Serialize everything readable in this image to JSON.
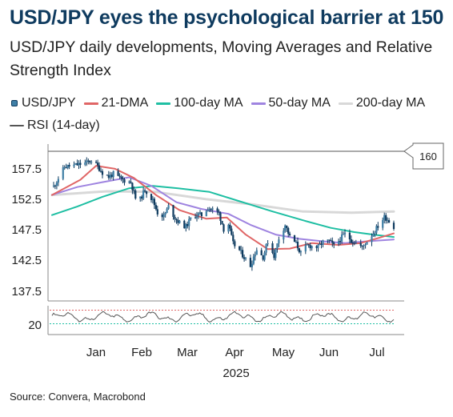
{
  "title": "USD/JPY eyes the psychological barrier at 150",
  "subtitle": "USD/JPY daily developments, Moving Averages and Relative Strength Index",
  "source": "Source: Convera, Macrobond",
  "legend": [
    {
      "label": "USD/JPY",
      "color": "#0f3b5f",
      "icon": "candlestick-icon"
    },
    {
      "label": "21-DMA",
      "color": "#e06666"
    },
    {
      "label": "100-day MA",
      "color": "#1fbfa3"
    },
    {
      "label": "50-day MA",
      "color": "#9f84e0"
    },
    {
      "label": "200-day MA",
      "color": "#d8d8d8"
    },
    {
      "label": "RSI (14-day)",
      "color": "#555555"
    }
  ],
  "chart_data": {
    "type": "line",
    "x_axis": {
      "months": [
        "Jan",
        "Feb",
        "Mar",
        "Apr",
        "May",
        "Jun",
        "Jul"
      ],
      "year_label": "2025",
      "range": [
        "2024-12-16",
        "2025-07-21"
      ]
    },
    "y_axis": {
      "ticks": [
        "157.5",
        "152.5",
        "147.5",
        "142.5",
        "137.5"
      ],
      "range": [
        135.5,
        160.2
      ],
      "grid": false
    },
    "reference_line": {
      "value": 160,
      "label": "160"
    },
    "price_keypoints": [
      [
        "2024-12-17",
        153.9
      ],
      [
        "2024-12-24",
        157.1
      ],
      [
        "2024-12-31",
        157.4
      ],
      [
        "2025-01-07",
        157.8
      ],
      [
        "2025-01-10",
        158.2
      ],
      [
        "2025-01-14",
        157.2
      ],
      [
        "2025-01-17",
        156.2
      ],
      [
        "2025-01-21",
        155.5
      ],
      [
        "2025-01-24",
        156.0
      ],
      [
        "2025-01-28",
        155.2
      ],
      [
        "2025-01-31",
        154.9
      ],
      [
        "2025-02-04",
        154.6
      ],
      [
        "2025-02-07",
        152.0
      ],
      [
        "2025-02-10",
        151.8
      ],
      [
        "2025-02-13",
        153.4
      ],
      [
        "2025-02-18",
        151.6
      ],
      [
        "2025-02-21",
        149.6
      ],
      [
        "2025-02-25",
        149.0
      ],
      [
        "2025-02-28",
        150.6
      ],
      [
        "2025-03-04",
        148.8
      ],
      [
        "2025-03-07",
        147.9
      ],
      [
        "2025-03-11",
        147.3
      ],
      [
        "2025-03-14",
        148.6
      ],
      [
        "2025-03-18",
        149.3
      ],
      [
        "2025-03-21",
        149.2
      ],
      [
        "2025-03-25",
        150.4
      ],
      [
        "2025-03-28",
        150.1
      ],
      [
        "2025-04-01",
        149.5
      ],
      [
        "2025-04-04",
        146.9
      ],
      [
        "2025-04-07",
        147.7
      ],
      [
        "2025-04-10",
        144.5
      ],
      [
        "2025-04-14",
        143.4
      ],
      [
        "2025-04-17",
        142.3
      ],
      [
        "2025-04-21",
        140.9
      ],
      [
        "2025-04-23",
        142.4
      ],
      [
        "2025-04-25",
        143.6
      ],
      [
        "2025-04-29",
        142.3
      ],
      [
        "2025-05-02",
        144.9
      ],
      [
        "2025-05-06",
        142.5
      ],
      [
        "2025-05-09",
        145.4
      ],
      [
        "2025-05-13",
        147.6
      ],
      [
        "2025-05-16",
        145.6
      ],
      [
        "2025-05-20",
        144.5
      ],
      [
        "2025-05-23",
        142.9
      ],
      [
        "2025-05-27",
        144.2
      ],
      [
        "2025-05-30",
        144.1
      ],
      [
        "2025-06-03",
        143.9
      ],
      [
        "2025-06-06",
        144.8
      ],
      [
        "2025-06-10",
        144.9
      ],
      [
        "2025-06-13",
        144.1
      ],
      [
        "2025-06-17",
        145.3
      ],
      [
        "2025-06-20",
        146.1
      ],
      [
        "2025-06-24",
        145.1
      ],
      [
        "2025-06-27",
        144.6
      ],
      [
        "2025-07-01",
        143.9
      ],
      [
        "2025-07-03",
        144.6
      ],
      [
        "2025-07-08",
        146.3
      ],
      [
        "2025-07-11",
        147.4
      ],
      [
        "2025-07-15",
        148.9
      ],
      [
        "2025-07-17",
        148.5
      ],
      [
        "2025-07-21",
        147.3
      ]
    ],
    "series": [
      {
        "name": "21-DMA",
        "color": "#e06666",
        "points": [
          [
            "2024-12-16",
            152.5
          ],
          [
            "2025-01-03",
            155.0
          ],
          [
            "2025-01-13",
            157.3
          ],
          [
            "2025-01-25",
            156.8
          ],
          [
            "2025-02-06",
            155.3
          ],
          [
            "2025-02-20",
            152.5
          ],
          [
            "2025-03-07",
            150.0
          ],
          [
            "2025-03-24",
            148.6
          ],
          [
            "2025-04-06",
            148.8
          ],
          [
            "2025-04-18",
            146.0
          ],
          [
            "2025-05-02",
            143.6
          ],
          [
            "2025-05-16",
            143.7
          ],
          [
            "2025-05-30",
            144.6
          ],
          [
            "2025-06-16",
            144.3
          ],
          [
            "2025-06-30",
            144.6
          ],
          [
            "2025-07-11",
            145.4
          ],
          [
            "2025-07-21",
            146.2
          ]
        ]
      },
      {
        "name": "50-day MA",
        "color": "#9f84e0",
        "points": [
          [
            "2024-12-16",
            152.5
          ],
          [
            "2025-01-01",
            153.8
          ],
          [
            "2025-01-17",
            154.6
          ],
          [
            "2025-02-03",
            155.4
          ],
          [
            "2025-02-17",
            154.0
          ],
          [
            "2025-03-05",
            151.3
          ],
          [
            "2025-03-21",
            150.2
          ],
          [
            "2025-04-07",
            149.4
          ],
          [
            "2025-04-21",
            147.6
          ],
          [
            "2025-05-07",
            146.0
          ],
          [
            "2025-05-22",
            145.3
          ],
          [
            "2025-06-06",
            144.9
          ],
          [
            "2025-06-20",
            144.6
          ],
          [
            "2025-07-04",
            144.9
          ],
          [
            "2025-07-21",
            145.2
          ]
        ]
      },
      {
        "name": "100-day MA",
        "color": "#1fbfa3",
        "points": [
          [
            "2024-12-16",
            149.2
          ],
          [
            "2025-01-01",
            150.6
          ],
          [
            "2025-01-17",
            152.2
          ],
          [
            "2025-02-03",
            153.6
          ],
          [
            "2025-02-18",
            154.0
          ],
          [
            "2025-03-06",
            153.6
          ],
          [
            "2025-03-26",
            153.0
          ],
          [
            "2025-04-15",
            151.4
          ],
          [
            "2025-05-05",
            149.8
          ],
          [
            "2025-05-25",
            148.3
          ],
          [
            "2025-06-11",
            147.1
          ],
          [
            "2025-06-26",
            146.4
          ],
          [
            "2025-07-08",
            146.0
          ],
          [
            "2025-07-21",
            145.6
          ]
        ]
      },
      {
        "name": "200-day MA",
        "color": "#d8d8d8",
        "points": [
          [
            "2024-12-16",
            152.5
          ],
          [
            "2025-01-20",
            153.1
          ],
          [
            "2025-02-20",
            153.0
          ],
          [
            "2025-03-24",
            151.8
          ],
          [
            "2025-04-24",
            150.9
          ],
          [
            "2025-05-24",
            149.8
          ],
          [
            "2025-06-24",
            149.6
          ],
          [
            "2025-07-21",
            149.8
          ]
        ]
      }
    ],
    "rsi": {
      "name": "RSI (14-day)",
      "tick": "20",
      "level_mean": 50
    }
  }
}
